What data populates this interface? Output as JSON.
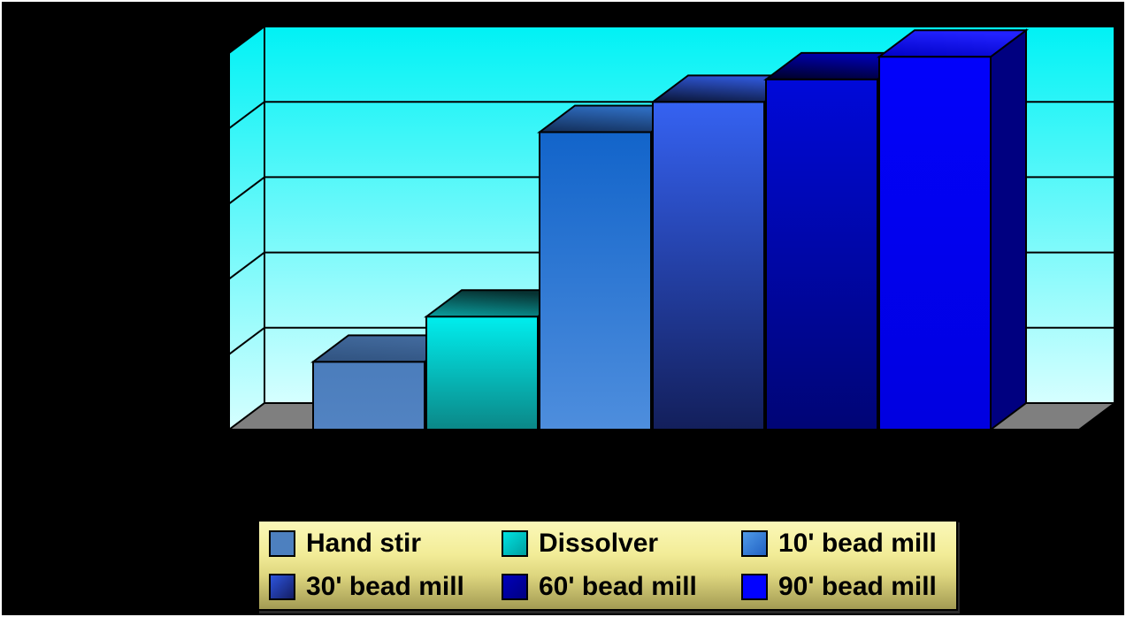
{
  "window": {
    "background_color": "#000000",
    "frame_border_color": "#ffffff"
  },
  "chart_data": {
    "type": "bar",
    "style": "3d-column",
    "title": "",
    "xlabel": "",
    "ylabel": "",
    "axis_labels_visible": false,
    "ylim": [
      0,
      100
    ],
    "gridline_divisions": 5,
    "grid": true,
    "legend_position": "bottom",
    "categories": [
      "Hand stir",
      "Dissolver",
      "10' bead mill",
      "30' bead mill",
      "60' bead mill",
      "90' bead mill"
    ],
    "values": [
      18,
      30,
      79,
      87,
      93,
      99
    ],
    "values_note": "estimated % of plot height; no numeric axis ticks are rendered in the image",
    "wall_gradient": [
      "#00f2f5",
      "#d6ffff"
    ],
    "floor_color": "#7f7f7f",
    "outline_color": "#000000",
    "bars": [
      {
        "name": "Hand stir",
        "front": [
          "#4b7dbc",
          "#5283c2"
        ],
        "top": [
          "#30527f",
          "#41699c"
        ]
      },
      {
        "name": "Dissolver",
        "front": [
          "#00eeee",
          "#0b8787"
        ],
        "top": [
          "#0aa0a0",
          "#073232"
        ]
      },
      {
        "name": "10' bead mill",
        "front": [
          "#1264ca",
          "#4e8edd"
        ],
        "top": [
          "#122c55",
          "#2e6cbf"
        ]
      },
      {
        "name": "30' bead mill",
        "front": [
          "#3562f2",
          "#131f5b"
        ],
        "top": [
          "#0a1432",
          "#2e55d3"
        ]
      },
      {
        "name": "60' bead mill",
        "front": [
          "#0009d9",
          "#000575"
        ],
        "top": [
          "#000122",
          "#0000b0"
        ]
      },
      {
        "name": "90' bead mill",
        "front": [
          "#0202fb",
          "#0000e0"
        ],
        "top": [
          "#0000c6",
          "#2222ff"
        ],
        "side": "#000080"
      }
    ],
    "legend": {
      "background_gradient": [
        "#fbf8b8",
        "#a39b53"
      ],
      "items": [
        {
          "label": "Hand stir",
          "swatch": [
            "#4d80bf",
            "#4d80bf"
          ]
        },
        {
          "label": "Dissolver",
          "swatch": [
            "#00e2e2",
            "#009f9f"
          ]
        },
        {
          "label": "10' bead mill",
          "swatch": [
            "#4f9ae8",
            "#2161c3"
          ]
        },
        {
          "label": "30' bead mill",
          "swatch": [
            "#2d55dd",
            "#141d64"
          ]
        },
        {
          "label": "60' bead mill",
          "swatch": [
            "#0000bb",
            "#000080"
          ]
        },
        {
          "label": "90' bead mill",
          "swatch": [
            "#0202ff",
            "#0202ff"
          ]
        }
      ]
    }
  }
}
